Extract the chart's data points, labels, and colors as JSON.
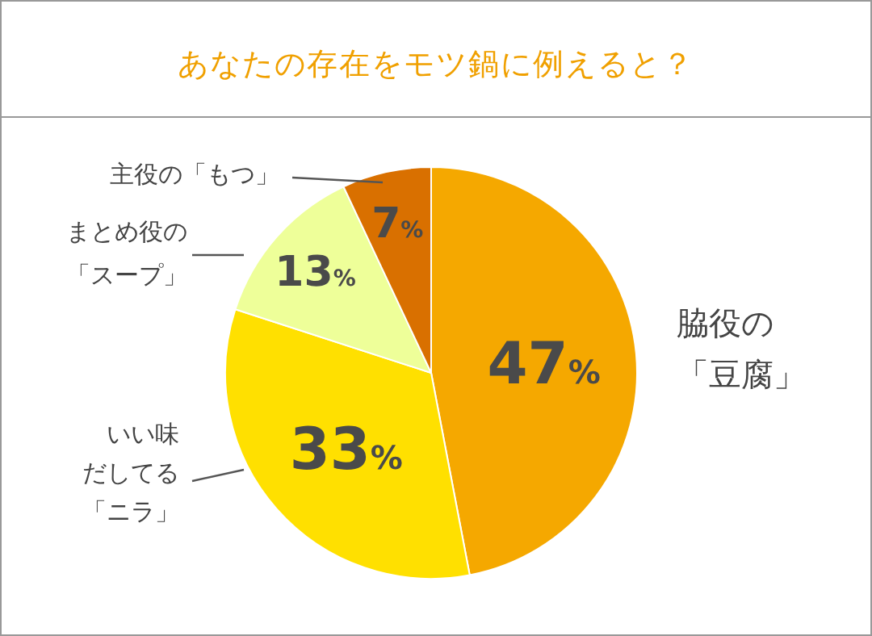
{
  "chart_data": {
    "type": "pie",
    "title": "あなたの存在をモツ鍋に例えると？",
    "categories": [
      "脇役の「豆腐」",
      "いい味だしてる「ニラ」",
      "まとめ役の「スープ」",
      "主役の「もつ」"
    ],
    "values": [
      47,
      33,
      13,
      7
    ],
    "colors": [
      "#f5a800",
      "#ffe000",
      "#eeff99",
      "#d97000"
    ],
    "value_labels": [
      "47%",
      "33%",
      "13%",
      "7%"
    ],
    "legend": false
  }
}
